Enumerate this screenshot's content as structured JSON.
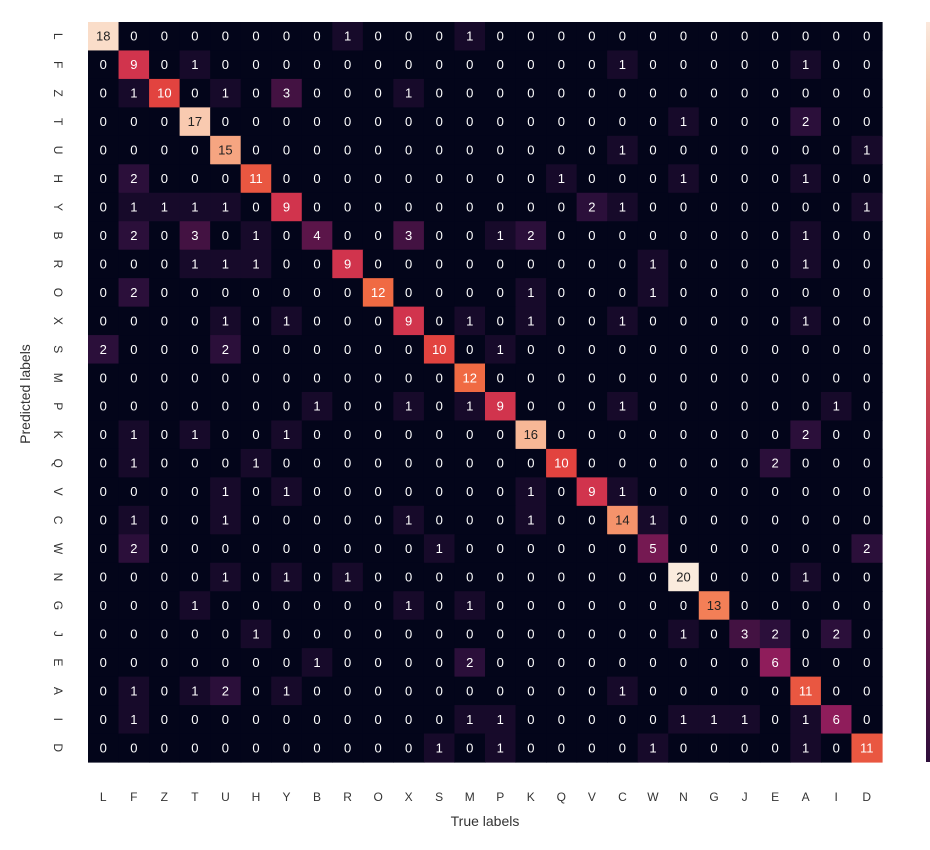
{
  "chart_data": {
    "type": "heatmap",
    "title": "",
    "xlabel": "True labels",
    "ylabel": "Predicted labels",
    "x_labels": [
      "L",
      "F",
      "Z",
      "T",
      "U",
      "H",
      "Y",
      "B",
      "R",
      "O",
      "X",
      "S",
      "M",
      "P",
      "K",
      "Q",
      "V",
      "C",
      "W",
      "N",
      "G",
      "J",
      "E",
      "A",
      "I",
      "D"
    ],
    "y_labels": [
      "L",
      "F",
      "Z",
      "T",
      "U",
      "H",
      "Y",
      "B",
      "R",
      "O",
      "X",
      "S",
      "M",
      "P",
      "K",
      "Q",
      "V",
      "C",
      "W",
      "N",
      "G",
      "J",
      "E",
      "A",
      "I",
      "D"
    ],
    "matrix": [
      [
        18,
        0,
        0,
        0,
        0,
        0,
        0,
        0,
        1,
        0,
        0,
        0,
        1,
        0,
        0,
        0,
        0,
        0,
        0,
        0,
        0,
        0,
        0,
        0,
        0,
        0
      ],
      [
        0,
        9,
        0,
        1,
        0,
        0,
        0,
        0,
        0,
        0,
        0,
        0,
        0,
        0,
        0,
        0,
        0,
        1,
        0,
        0,
        0,
        0,
        0,
        1,
        0,
        0
      ],
      [
        0,
        1,
        10,
        0,
        1,
        0,
        3,
        0,
        0,
        0,
        1,
        0,
        0,
        0,
        0,
        0,
        0,
        0,
        0,
        0,
        0,
        0,
        0,
        0,
        0,
        0
      ],
      [
        0,
        0,
        0,
        17,
        0,
        0,
        0,
        0,
        0,
        0,
        0,
        0,
        0,
        0,
        0,
        0,
        0,
        0,
        0,
        1,
        0,
        0,
        0,
        2,
        0,
        0
      ],
      [
        0,
        0,
        0,
        0,
        15,
        0,
        0,
        0,
        0,
        0,
        0,
        0,
        0,
        0,
        0,
        0,
        0,
        1,
        0,
        0,
        0,
        0,
        0,
        0,
        0,
        1
      ],
      [
        0,
        2,
        0,
        0,
        0,
        11,
        0,
        0,
        0,
        0,
        0,
        0,
        0,
        0,
        0,
        1,
        0,
        0,
        0,
        1,
        0,
        0,
        0,
        1,
        0,
        0
      ],
      [
        0,
        1,
        1,
        1,
        1,
        0,
        9,
        0,
        0,
        0,
        0,
        0,
        0,
        0,
        0,
        0,
        2,
        1,
        0,
        0,
        0,
        0,
        0,
        0,
        0,
        1
      ],
      [
        0,
        2,
        0,
        3,
        0,
        1,
        0,
        4,
        0,
        0,
        3,
        0,
        0,
        1,
        2,
        0,
        0,
        0,
        0,
        0,
        0,
        0,
        0,
        1,
        0,
        0
      ],
      [
        0,
        0,
        0,
        1,
        1,
        1,
        0,
        0,
        9,
        0,
        0,
        0,
        0,
        0,
        0,
        0,
        0,
        0,
        1,
        0,
        0,
        0,
        0,
        1,
        0,
        0
      ],
      [
        0,
        2,
        0,
        0,
        0,
        0,
        0,
        0,
        0,
        12,
        0,
        0,
        0,
        0,
        1,
        0,
        0,
        0,
        1,
        0,
        0,
        0,
        0,
        0,
        0,
        0
      ],
      [
        0,
        0,
        0,
        0,
        1,
        0,
        1,
        0,
        0,
        0,
        9,
        0,
        1,
        0,
        1,
        0,
        0,
        1,
        0,
        0,
        0,
        0,
        0,
        1,
        0,
        0
      ],
      [
        2,
        0,
        0,
        0,
        2,
        0,
        0,
        0,
        0,
        0,
        0,
        10,
        0,
        1,
        0,
        0,
        0,
        0,
        0,
        0,
        0,
        0,
        0,
        0,
        0,
        0
      ],
      [
        0,
        0,
        0,
        0,
        0,
        0,
        0,
        0,
        0,
        0,
        0,
        0,
        12,
        0,
        0,
        0,
        0,
        0,
        0,
        0,
        0,
        0,
        0,
        0,
        0,
        0
      ],
      [
        0,
        0,
        0,
        0,
        0,
        0,
        0,
        1,
        0,
        0,
        1,
        0,
        1,
        9,
        0,
        0,
        0,
        1,
        0,
        0,
        0,
        0,
        0,
        0,
        1,
        0
      ],
      [
        0,
        1,
        0,
        1,
        0,
        0,
        1,
        0,
        0,
        0,
        0,
        0,
        0,
        0,
        16,
        0,
        0,
        0,
        0,
        0,
        0,
        0,
        0,
        2,
        0,
        0
      ],
      [
        0,
        1,
        0,
        0,
        0,
        1,
        0,
        0,
        0,
        0,
        0,
        0,
        0,
        0,
        0,
        10,
        0,
        0,
        0,
        0,
        0,
        0,
        2,
        0,
        0,
        0
      ],
      [
        0,
        0,
        0,
        0,
        1,
        0,
        1,
        0,
        0,
        0,
        0,
        0,
        0,
        0,
        1,
        0,
        9,
        1,
        0,
        0,
        0,
        0,
        0,
        0,
        0,
        0
      ],
      [
        0,
        1,
        0,
        0,
        1,
        0,
        0,
        0,
        0,
        0,
        1,
        0,
        0,
        0,
        1,
        0,
        0,
        14,
        1,
        0,
        0,
        0,
        0,
        0,
        0,
        0
      ],
      [
        0,
        2,
        0,
        0,
        0,
        0,
        0,
        0,
        0,
        0,
        0,
        1,
        0,
        0,
        0,
        0,
        0,
        0,
        5,
        0,
        0,
        0,
        0,
        0,
        0,
        2
      ],
      [
        0,
        0,
        0,
        0,
        1,
        0,
        1,
        0,
        1,
        0,
        0,
        0,
        0,
        0,
        0,
        0,
        0,
        0,
        0,
        20,
        0,
        0,
        0,
        1,
        0,
        0
      ],
      [
        0,
        0,
        0,
        1,
        0,
        0,
        0,
        0,
        0,
        0,
        1,
        0,
        1,
        0,
        0,
        0,
        0,
        0,
        0,
        0,
        13,
        0,
        0,
        0,
        0,
        0
      ],
      [
        0,
        0,
        0,
        0,
        0,
        1,
        0,
        0,
        0,
        0,
        0,
        0,
        0,
        0,
        0,
        0,
        0,
        0,
        0,
        1,
        0,
        3,
        2,
        0,
        2,
        0
      ],
      [
        0,
        0,
        0,
        0,
        0,
        0,
        0,
        1,
        0,
        0,
        0,
        0,
        2,
        0,
        0,
        0,
        0,
        0,
        0,
        0,
        0,
        0,
        6,
        0,
        0,
        0
      ],
      [
        0,
        1,
        0,
        1,
        2,
        0,
        1,
        0,
        0,
        0,
        0,
        0,
        0,
        0,
        0,
        0,
        0,
        1,
        0,
        0,
        0,
        0,
        0,
        11,
        0,
        0
      ],
      [
        0,
        1,
        0,
        0,
        0,
        0,
        0,
        0,
        0,
        0,
        0,
        0,
        1,
        1,
        0,
        0,
        0,
        0,
        0,
        1,
        1,
        1,
        0,
        1,
        6,
        0
      ],
      [
        0,
        0,
        0,
        0,
        0,
        0,
        0,
        0,
        0,
        0,
        0,
        1,
        0,
        1,
        0,
        0,
        0,
        0,
        1,
        0,
        0,
        0,
        0,
        1,
        0,
        11
      ]
    ],
    "vmin": 0,
    "vmax": 20,
    "colormap": [
      "#03051a",
      "#2b0f3a",
      "#5b1549",
      "#8f1d5b",
      "#c0245a",
      "#e2433f",
      "#f06a43",
      "#f5936b",
      "#f7b796",
      "#faddc9",
      "#faebdd"
    ],
    "text_color_dark": "#222222",
    "text_color_light": "#ffffff",
    "x_tick_rotation": "none",
    "y_tick_rotation": 90,
    "grid": false,
    "colorbar": "right (cropped)"
  }
}
